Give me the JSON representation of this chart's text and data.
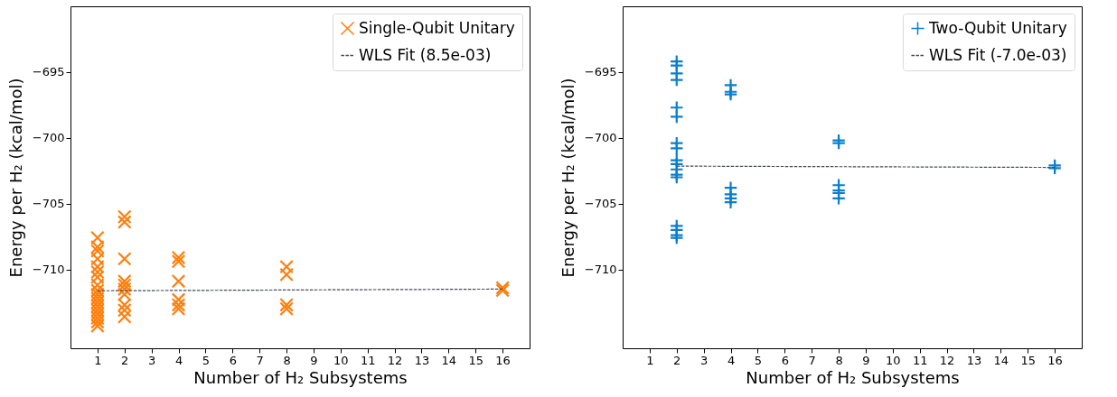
{
  "chart_data": [
    {
      "type": "scatter",
      "xlabel": "Number of H₂ Subsystems",
      "ylabel": "Energy per H₂ (kcal/mol)",
      "xlim": [
        0,
        17
      ],
      "ylim": [
        -716,
        -690
      ],
      "xticks": [
        1,
        2,
        3,
        4,
        5,
        6,
        7,
        8,
        9,
        10,
        11,
        12,
        13,
        14,
        15,
        16
      ],
      "yticks": [
        -710,
        -705,
        -700,
        -695
      ],
      "grid": false,
      "legend": "top right",
      "series": [
        {
          "name": "Single-Qubit Unitary",
          "type": "scatter",
          "marker": "x",
          "color": "#ff7f0e",
          "x": [
            1,
            1,
            1,
            1,
            1,
            1,
            1,
            1,
            1,
            1,
            1,
            1,
            1,
            1,
            1,
            1,
            1,
            1,
            2,
            2,
            2,
            2,
            2,
            2,
            2,
            2,
            2,
            2,
            4,
            4,
            4,
            4,
            4,
            4,
            8,
            8,
            8,
            8,
            16,
            16
          ],
          "values": [
            -707.6,
            -708.3,
            -708.6,
            -709.2,
            -709.8,
            -710.2,
            -710.6,
            -711.2,
            -711.6,
            -711.9,
            -712.2,
            -712.5,
            -712.8,
            -713.1,
            -713.4,
            -713.7,
            -714.0,
            -714.3,
            -706.0,
            -706.4,
            -709.2,
            -710.9,
            -711.2,
            -711.5,
            -711.9,
            -712.7,
            -713.1,
            -713.6,
            -709.1,
            -709.4,
            -710.9,
            -712.3,
            -712.7,
            -713.0,
            -709.8,
            -710.4,
            -712.7,
            -713.0,
            -711.4,
            -711.6
          ]
        },
        {
          "name": "WLS Fit (8.5e-03)",
          "type": "line",
          "line_style": "dashed",
          "color": "#474b57",
          "x": [
            1,
            16
          ],
          "values": [
            -711.63,
            -711.5
          ]
        }
      ]
    },
    {
      "type": "scatter",
      "xlabel": "Number of H₂ Subsystems",
      "ylabel": "Energy per H₂ (kcal/mol)",
      "xlim": [
        0,
        17
      ],
      "ylim": [
        -716,
        -690
      ],
      "xticks": [
        1,
        2,
        3,
        4,
        5,
        6,
        7,
        8,
        9,
        10,
        11,
        12,
        13,
        14,
        15,
        16
      ],
      "yticks": [
        -710,
        -705,
        -700,
        -695
      ],
      "grid": false,
      "legend": "top right",
      "series": [
        {
          "name": "Two-Qubit Unitary",
          "type": "scatter",
          "marker": "cross",
          "color": "#0a7fcc",
          "x": [
            2,
            2,
            2,
            2,
            2,
            2,
            2,
            2,
            2,
            2,
            2,
            2,
            2,
            2,
            2,
            2,
            2,
            4,
            4,
            4,
            4,
            4,
            4,
            4,
            8,
            8,
            8,
            8,
            8,
            8,
            16,
            16
          ],
          "values": [
            -694.2,
            -694.5,
            -695.1,
            -695.6,
            -697.7,
            -698.4,
            -700.4,
            -700.8,
            -701.7,
            -702.0,
            -702.4,
            -702.8,
            -703.0,
            -706.7,
            -707.0,
            -707.4,
            -707.6,
            -696.0,
            -696.5,
            -696.7,
            -703.8,
            -704.3,
            -704.6,
            -704.9,
            -700.2,
            -700.4,
            -703.6,
            -704.0,
            -704.2,
            -704.6,
            -702.1,
            -702.3
          ]
        },
        {
          "name": "WLS Fit (-7.0e-03)",
          "type": "line",
          "line_style": "dashed",
          "color": "#474b57",
          "x": [
            2,
            16
          ],
          "values": [
            -702.15,
            -702.25
          ]
        }
      ]
    }
  ]
}
